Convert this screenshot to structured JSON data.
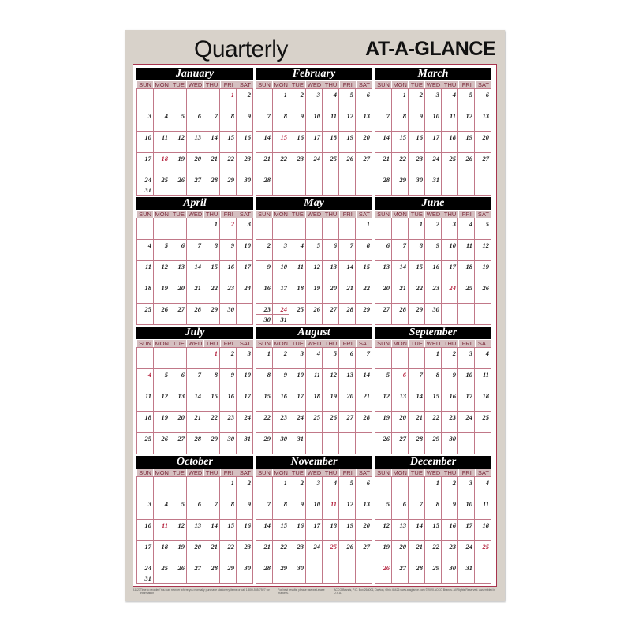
{
  "header": {
    "title": "Quarterly",
    "brand": "AT-A-GLANCE"
  },
  "weekdays": [
    "SUN",
    "MON",
    "TUE",
    "WED",
    "THU",
    "FRI",
    "SAT"
  ],
  "months": [
    {
      "name": "January",
      "first_weekday": 5,
      "days": 31,
      "red": [
        1,
        18
      ]
    },
    {
      "name": "February",
      "first_weekday": 1,
      "days": 28,
      "red": [
        15
      ]
    },
    {
      "name": "March",
      "first_weekday": 1,
      "days": 31,
      "red": []
    },
    {
      "name": "April",
      "first_weekday": 4,
      "days": 30,
      "red": [
        2
      ]
    },
    {
      "name": "May",
      "first_weekday": 6,
      "days": 31,
      "red": [
        24,
        31
      ]
    },
    {
      "name": "June",
      "first_weekday": 2,
      "days": 30,
      "red": [
        24
      ]
    },
    {
      "name": "July",
      "first_weekday": 4,
      "days": 31,
      "red": [
        1,
        4
      ]
    },
    {
      "name": "August",
      "first_weekday": 0,
      "days": 31,
      "red": []
    },
    {
      "name": "September",
      "first_weekday": 3,
      "days": 30,
      "red": [
        6
      ]
    },
    {
      "name": "October",
      "first_weekday": 5,
      "days": 31,
      "red": [
        11
      ]
    },
    {
      "name": "November",
      "first_weekday": 1,
      "days": 30,
      "red": [
        11,
        25
      ]
    },
    {
      "name": "December",
      "first_weekday": 3,
      "days": 31,
      "red": [
        25,
        26
      ]
    }
  ],
  "footer": {
    "left": "A1123",
    "reorder": "Time to reorder! You can reorder where you normally purchase stationery items or call 1-800-555-7527 for information",
    "tip": "For best results, please use wet-erase markers.",
    "legal": "ACCO Brands, P.O. Box 268001, Dayton, Ohio 45426 www.ataglance.com ©2020 ACCO Brands. All Rights Reserved. Assembled in U.S.A."
  },
  "colors": {
    "accent": "#a8344e",
    "header": "#000000",
    "panel": "#d8d2ca"
  }
}
